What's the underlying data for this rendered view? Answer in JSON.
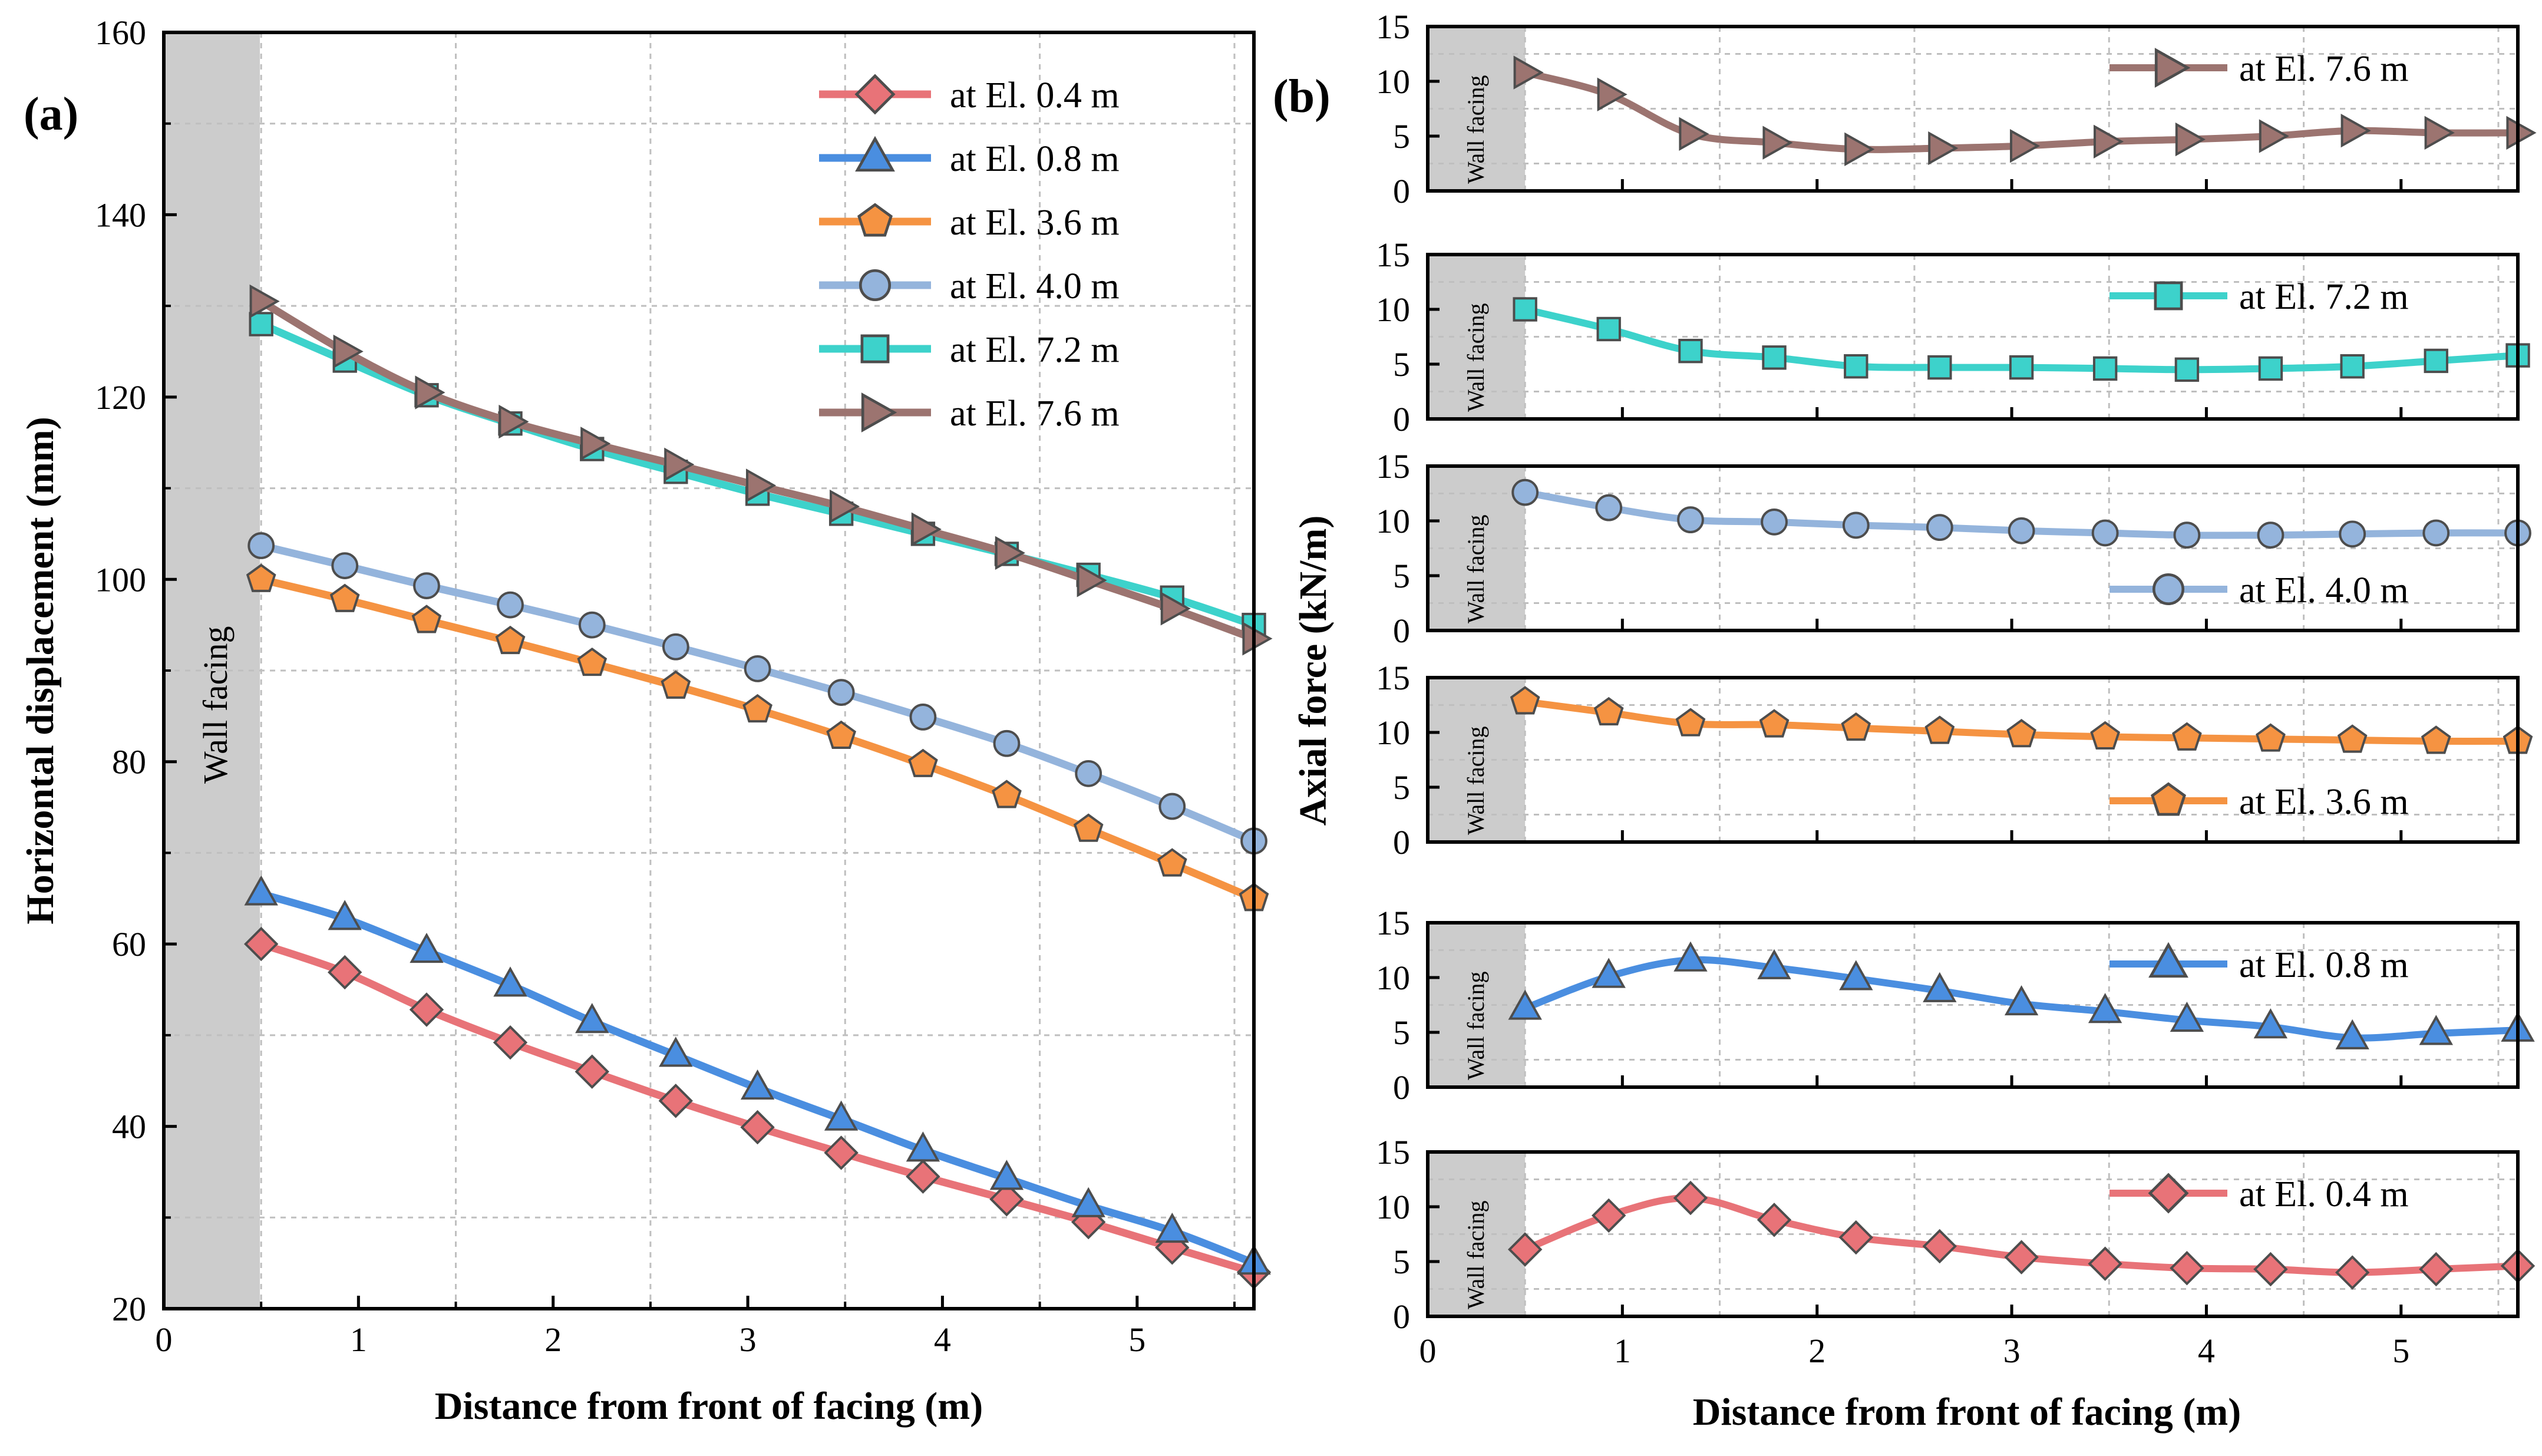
{
  "chart_data": [
    {
      "type": "line",
      "panel_label": "(a)",
      "xlabel": "Distance from front of facing (m)",
      "ylabel": "Horizontal displacement (mm)",
      "xlim": [
        0,
        5.6
      ],
      "ylim": [
        20,
        160
      ],
      "xticks": [
        0,
        1,
        2,
        3,
        4,
        5
      ],
      "yticks": [
        20,
        40,
        60,
        80,
        100,
        120,
        140,
        160
      ],
      "grid": true,
      "legend_position": "top-right",
      "facing_band": {
        "x_range": [
          0,
          0.5
        ],
        "label": "Wall facing"
      },
      "x": [
        0.5,
        0.93,
        1.35,
        1.78,
        2.2,
        2.63,
        3.05,
        3.48,
        3.9,
        4.33,
        4.75,
        5.18,
        5.6
      ],
      "series": [
        {
          "name": "at El. 0.4 m",
          "color": "#e87378",
          "marker": "diamond",
          "values": [
            60,
            56.9,
            52.8,
            49.2,
            46,
            42.8,
            39.9,
            37.1,
            34.5,
            32,
            29.5,
            26.7,
            24
          ]
        },
        {
          "name": "at El. 0.8 m",
          "color": "#4a8ee0",
          "marker": "triangle-up",
          "values": [
            65.5,
            62.8,
            59.2,
            55.5,
            51.5,
            47.8,
            44.2,
            40.8,
            37.4,
            34.3,
            31.3,
            28.5,
            25
          ]
        },
        {
          "name": "at El. 3.6 m",
          "color": "#f59342",
          "marker": "pentagon",
          "values": [
            100,
            97.8,
            95.5,
            93.2,
            90.8,
            88.3,
            85.7,
            82.8,
            79.7,
            76.3,
            72.6,
            68.8,
            65
          ]
        },
        {
          "name": "at El. 4.0 m",
          "color": "#94b4dc",
          "marker": "circle",
          "values": [
            103.7,
            101.5,
            99.3,
            97.2,
            95,
            92.6,
            90.2,
            87.6,
            84.9,
            82,
            78.7,
            75.1,
            71.3
          ]
        },
        {
          "name": "at El. 7.2 m",
          "color": "#3dd2cb",
          "marker": "square",
          "values": [
            128,
            124,
            120.2,
            117.1,
            114.3,
            111.8,
            109.4,
            107.2,
            105,
            102.8,
            100.5,
            98,
            95
          ]
        },
        {
          "name": "at El. 7.6 m",
          "color": "#9c7470",
          "marker": "triangle-right",
          "values": [
            130.5,
            125,
            120.5,
            117.3,
            114.9,
            112.6,
            110.3,
            108,
            105.5,
            102.9,
            99.9,
            96.8,
            93.5
          ]
        }
      ]
    },
    {
      "type": "line",
      "panel_label": "(b)",
      "xlabel": "Distance from front of facing (m)",
      "ylabel": "Axial force (kN/m)",
      "xlim": [
        0,
        5.6
      ],
      "ylim": [
        0,
        15
      ],
      "xticks": [
        0,
        1,
        2,
        3,
        4,
        5
      ],
      "yticks": [
        0,
        5,
        10,
        15
      ],
      "grid": true,
      "facing_band": {
        "x_range": [
          0,
          0.5
        ],
        "label": "Wall facing"
      },
      "x": [
        0.5,
        0.93,
        1.35,
        1.78,
        2.2,
        2.63,
        3.05,
        3.48,
        3.9,
        4.33,
        4.75,
        5.18,
        5.6
      ],
      "subplots": [
        {
          "name": "at El. 7.6 m",
          "color": "#9c7470",
          "marker": "triangle-right",
          "legend_position": "top-right",
          "values": [
            10.8,
            8.8,
            5.2,
            4.4,
            3.8,
            3.9,
            4.1,
            4.5,
            4.7,
            5,
            5.5,
            5.3,
            5.3
          ]
        },
        {
          "name": "at El. 7.2 m",
          "color": "#3dd2cb",
          "marker": "square",
          "legend_position": "top-right",
          "values": [
            10,
            8.2,
            6.2,
            5.6,
            4.8,
            4.7,
            4.7,
            4.6,
            4.5,
            4.6,
            4.8,
            5.3,
            5.8
          ]
        },
        {
          "name": "at El. 4.0 m",
          "color": "#94b4dc",
          "marker": "circle",
          "legend_position": "bottom-right",
          "values": [
            12.6,
            11.2,
            10.1,
            9.9,
            9.6,
            9.4,
            9.1,
            8.9,
            8.7,
            8.7,
            8.8,
            8.9,
            8.9
          ]
        },
        {
          "name": "at El. 3.6 m",
          "color": "#f59342",
          "marker": "pentagon",
          "legend_position": "bottom-right",
          "values": [
            12.8,
            11.8,
            10.8,
            10.7,
            10.4,
            10.1,
            9.8,
            9.6,
            9.5,
            9.4,
            9.3,
            9.2,
            9.2
          ]
        },
        {
          "name": "at El. 0.8 m",
          "color": "#4a8ee0",
          "marker": "triangle-up",
          "legend_position": "top-right",
          "values": [
            7.2,
            10.1,
            11.6,
            10.9,
            9.9,
            8.8,
            7.6,
            6.9,
            6.1,
            5.5,
            4.5,
            4.9,
            5.2
          ]
        },
        {
          "name": "at El. 0.4 m",
          "color": "#e87378",
          "marker": "diamond",
          "legend_position": "top-right",
          "values": [
            6.1,
            9.2,
            10.8,
            8.8,
            7.2,
            6.4,
            5.4,
            4.8,
            4.4,
            4.3,
            4,
            4.3,
            4.6
          ]
        }
      ]
    }
  ]
}
